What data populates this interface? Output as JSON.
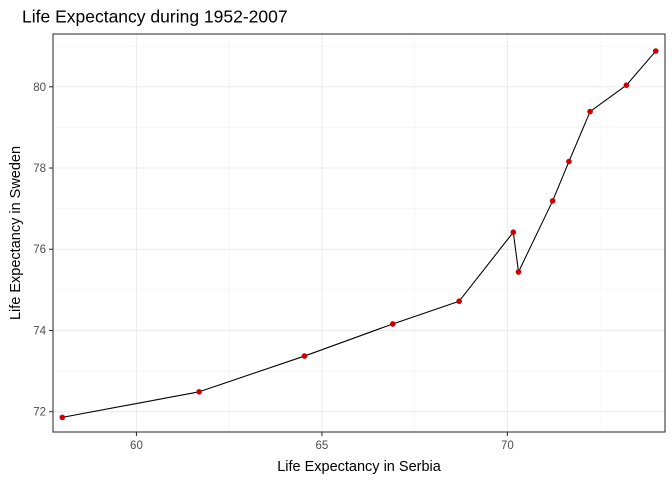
{
  "chart_data": {
    "type": "line",
    "title": "Life Expectancy during 1952-2007",
    "xlabel": "Life Expectancy in Serbia",
    "ylabel": "Life Expectancy in Sweden",
    "xlim": [
      57.75,
      74.25
    ],
    "ylim": [
      71.5,
      81.3
    ],
    "x_ticks": [
      60,
      65,
      70
    ],
    "y_ticks": [
      72,
      74,
      76,
      78,
      80
    ],
    "x_minor_ticks": [
      57.5,
      62.5,
      67.5,
      72.5
    ],
    "y_minor_ticks": [
      71,
      73,
      75,
      77,
      79,
      81
    ],
    "grid": true,
    "legend": "none",
    "line_color": "#000000",
    "point_color": "#cc0000",
    "series": [
      {
        "x": [
          58.0,
          61.69,
          64.53,
          66.91,
          68.7,
          70.16,
          70.3,
          71.22,
          71.66,
          72.23,
          73.21,
          74.0
        ],
        "y": [
          71.86,
          72.49,
          73.37,
          74.16,
          74.72,
          76.42,
          75.44,
          77.19,
          78.16,
          79.39,
          80.04,
          80.88
        ]
      }
    ]
  }
}
